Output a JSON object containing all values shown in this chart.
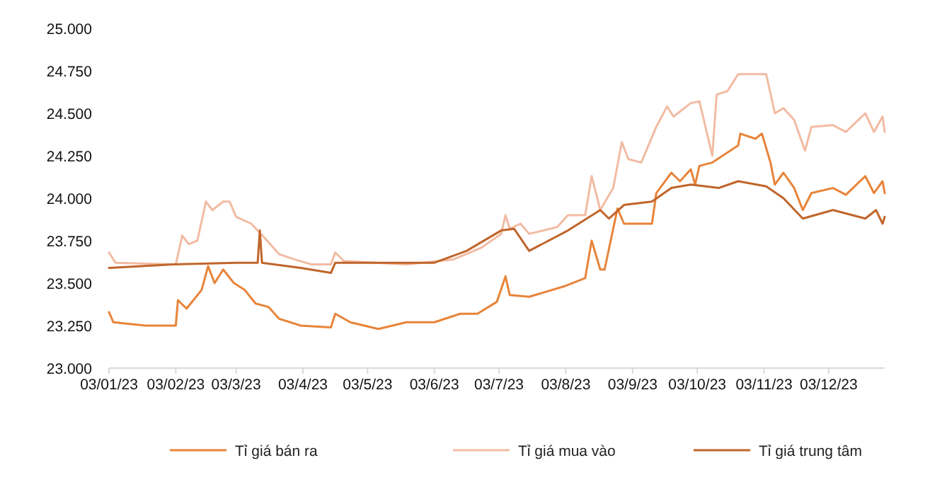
{
  "chart_data": {
    "type": "line",
    "legend": "bottom",
    "grid": false,
    "marker": "none",
    "line_style": "solid",
    "xlim": [
      "2023-01-03",
      "2023-12-29"
    ],
    "xticks": [
      {
        "value": "2023-01-03",
        "label": "03/01/23"
      },
      {
        "value": "2023-02-03",
        "label": "03/02/23"
      },
      {
        "value": "2023-03-03",
        "label": "03/3/23"
      },
      {
        "value": "2023-04-03",
        "label": "03/4/23"
      },
      {
        "value": "2023-05-03",
        "label": "03/5/23"
      },
      {
        "value": "2023-06-03",
        "label": "03/6/23"
      },
      {
        "value": "2023-07-03",
        "label": "03/7/23"
      },
      {
        "value": "2023-08-03",
        "label": "03/8/23"
      },
      {
        "value": "2023-09-03",
        "label": "03/9/23"
      },
      {
        "value": "2023-10-03",
        "label": "03/10/23"
      },
      {
        "value": "2023-11-03",
        "label": "03/11/23"
      },
      {
        "value": "2023-12-03",
        "label": "03/12/23"
      }
    ],
    "ylim": [
      23000,
      25000
    ],
    "yticks": [
      {
        "value": 23000,
        "label": "23.000"
      },
      {
        "value": 23250,
        "label": "23.250"
      },
      {
        "value": 23500,
        "label": "23.500"
      },
      {
        "value": 23750,
        "label": "23.750"
      },
      {
        "value": 24000,
        "label": "24.000"
      },
      {
        "value": 24250,
        "label": "24.250"
      },
      {
        "value": 24500,
        "label": "24.500"
      },
      {
        "value": 24750,
        "label": "24.750"
      },
      {
        "value": 25000,
        "label": "25.000"
      }
    ],
    "series": [
      {
        "name": "Tỉ giá bán ra",
        "color": "#e8843a",
        "x": [
          "2023-01-03",
          "2023-01-05",
          "2023-01-20",
          "2023-02-03",
          "2023-02-04",
          "2023-02-08",
          "2023-02-15",
          "2023-02-18",
          "2023-02-21",
          "2023-02-25",
          "2023-03-02",
          "2023-03-07",
          "2023-03-12",
          "2023-03-18",
          "2023-03-23",
          "2023-04-02",
          "2023-04-16",
          "2023-04-18",
          "2023-04-25",
          "2023-05-08",
          "2023-05-21",
          "2023-06-03",
          "2023-06-15",
          "2023-06-23",
          "2023-07-02",
          "2023-07-06",
          "2023-07-08",
          "2023-07-17",
          "2023-08-02",
          "2023-08-12",
          "2023-08-15",
          "2023-08-19",
          "2023-08-21",
          "2023-08-27",
          "2023-08-30",
          "2023-09-12",
          "2023-09-14",
          "2023-09-21",
          "2023-09-25",
          "2023-09-30",
          "2023-10-02",
          "2023-10-04",
          "2023-10-10",
          "2023-10-22",
          "2023-10-23",
          "2023-10-30",
          "2023-11-02",
          "2023-11-06",
          "2023-11-08",
          "2023-11-12",
          "2023-11-17",
          "2023-11-21",
          "2023-11-25",
          "2023-12-05",
          "2023-12-11",
          "2023-12-20",
          "2023-12-24",
          "2023-12-28",
          "2023-12-29"
        ],
        "values": [
          23330,
          23270,
          23250,
          23250,
          23400,
          23350,
          23460,
          23600,
          23500,
          23580,
          23500,
          23460,
          23380,
          23360,
          23290,
          23250,
          23240,
          23320,
          23270,
          23230,
          23270,
          23270,
          23320,
          23320,
          23390,
          23540,
          23430,
          23420,
          23480,
          23530,
          23750,
          23580,
          23580,
          23940,
          23850,
          23850,
          24030,
          24150,
          24100,
          24170,
          24080,
          24190,
          24210,
          24310,
          24380,
          24350,
          24380,
          24210,
          24080,
          24150,
          24060,
          23930,
          24030,
          24060,
          24020,
          24130,
          24030,
          24100,
          24030
        ]
      },
      {
        "name": "Tỉ giá mua vào",
        "color": "#f2bba3",
        "x": [
          "2023-01-03",
          "2023-01-06",
          "2023-02-03",
          "2023-02-06",
          "2023-02-09",
          "2023-02-13",
          "2023-02-17",
          "2023-02-20",
          "2023-02-25",
          "2023-02-28",
          "2023-03-03",
          "2023-03-10",
          "2023-03-16",
          "2023-03-23",
          "2023-03-30",
          "2023-04-07",
          "2023-04-16",
          "2023-04-18",
          "2023-04-22",
          "2023-05-21",
          "2023-06-12",
          "2023-06-25",
          "2023-07-04",
          "2023-07-06",
          "2023-07-08",
          "2023-07-13",
          "2023-07-17",
          "2023-07-30",
          "2023-08-04",
          "2023-08-12",
          "2023-08-15",
          "2023-08-19",
          "2023-08-25",
          "2023-08-29",
          "2023-09-01",
          "2023-09-07",
          "2023-09-14",
          "2023-09-19",
          "2023-09-22",
          "2023-09-30",
          "2023-10-04",
          "2023-10-10",
          "2023-10-12",
          "2023-10-17",
          "2023-10-22",
          "2023-10-30",
          "2023-11-04",
          "2023-11-08",
          "2023-11-12",
          "2023-11-17",
          "2023-11-22",
          "2023-11-25",
          "2023-12-05",
          "2023-12-11",
          "2023-12-20",
          "2023-12-24",
          "2023-12-28",
          "2023-12-29"
        ],
        "values": [
          23680,
          23620,
          23610,
          23780,
          23730,
          23750,
          23980,
          23930,
          23980,
          23980,
          23890,
          23850,
          23770,
          23670,
          23640,
          23610,
          23610,
          23680,
          23630,
          23610,
          23640,
          23710,
          23790,
          23900,
          23820,
          23850,
          23790,
          23830,
          23900,
          23900,
          24130,
          23930,
          24060,
          24330,
          24230,
          24210,
          24420,
          24540,
          24480,
          24560,
          24570,
          24250,
          24610,
          24630,
          24730,
          24730,
          24730,
          24500,
          24530,
          24460,
          24280,
          24420,
          24430,
          24390,
          24500,
          24390,
          24480,
          24390
        ]
      },
      {
        "name": "Tỉ giá trung tâm",
        "color": "#c0652b",
        "x": [
          "2023-01-03",
          "2023-02-02",
          "2023-03-03",
          "2023-03-13",
          "2023-03-14",
          "2023-03-15",
          "2023-04-02",
          "2023-04-16",
          "2023-04-18",
          "2023-05-08",
          "2023-06-03",
          "2023-06-18",
          "2023-07-04",
          "2023-07-10",
          "2023-07-17",
          "2023-08-04",
          "2023-08-19",
          "2023-08-23",
          "2023-08-30",
          "2023-09-12",
          "2023-09-21",
          "2023-09-30",
          "2023-10-13",
          "2023-10-22",
          "2023-11-04",
          "2023-11-12",
          "2023-11-21",
          "2023-12-05",
          "2023-12-20",
          "2023-12-25",
          "2023-12-28",
          "2023-12-29"
        ],
        "values": [
          23590,
          23610,
          23620,
          23620,
          23810,
          23620,
          23590,
          23560,
          23620,
          23620,
          23620,
          23690,
          23810,
          23820,
          23690,
          23810,
          23930,
          23880,
          23960,
          23980,
          24060,
          24080,
          24060,
          24100,
          24070,
          24000,
          23880,
          23930,
          23880,
          23930,
          23850,
          23890
        ]
      }
    ]
  }
}
